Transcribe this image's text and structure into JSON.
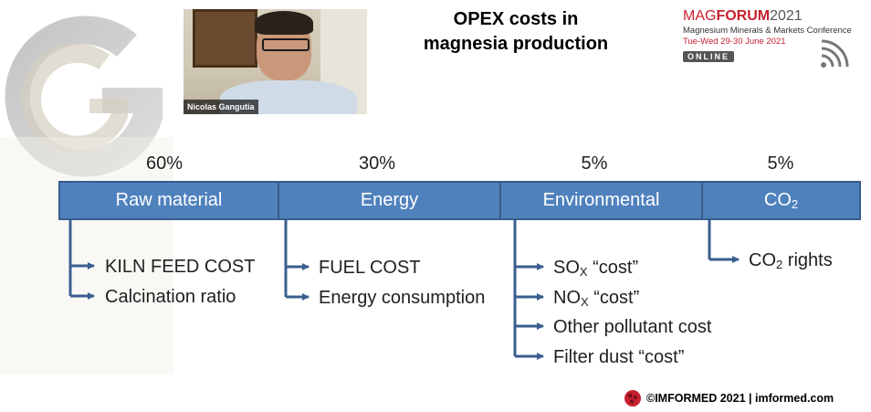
{
  "header": {
    "title_line1": "OPEX costs in",
    "title_line2": "magnesia production"
  },
  "webcam": {
    "speaker_name": "Nicolas Gangutia"
  },
  "conference": {
    "brand_prefix": "MAG",
    "brand_bold": "FORUM",
    "year": "2021",
    "subtitle": "Magnesium Minerals & Markets Conference",
    "dates": "Tue-Wed 29-30 June 2021",
    "badge": "ONLINE"
  },
  "categories": [
    {
      "label": "Raw material",
      "percent": "60%",
      "items": [
        "KILN FEED COST",
        "Calcination ratio"
      ]
    },
    {
      "label": "Energy",
      "percent": "30%",
      "items": [
        "FUEL COST",
        "Energy consumption"
      ]
    },
    {
      "label": "Environmental",
      "percent": "5%",
      "items": [
        {
          "base": "SO",
          "sub": "X",
          "rest": " “cost”"
        },
        {
          "base": "NO",
          "sub": "X",
          "rest": " “cost”"
        },
        "Other pollutant cost",
        "Filter dust “cost”"
      ]
    },
    {
      "label": {
        "base": "CO",
        "sub": "2"
      },
      "percent": "5%",
      "items": [
        {
          "base": "CO",
          "sub": "2",
          "rest": " rights"
        }
      ]
    }
  ],
  "footer": {
    "copyright": "©IMFORMED 2021",
    "separator": " | ",
    "website": "imformed.com"
  },
  "colors": {
    "bar_fill": "#4f81bd",
    "bar_border": "#385d8a",
    "arrow": "#3a5f8f",
    "brand_red": "#c8202f"
  }
}
